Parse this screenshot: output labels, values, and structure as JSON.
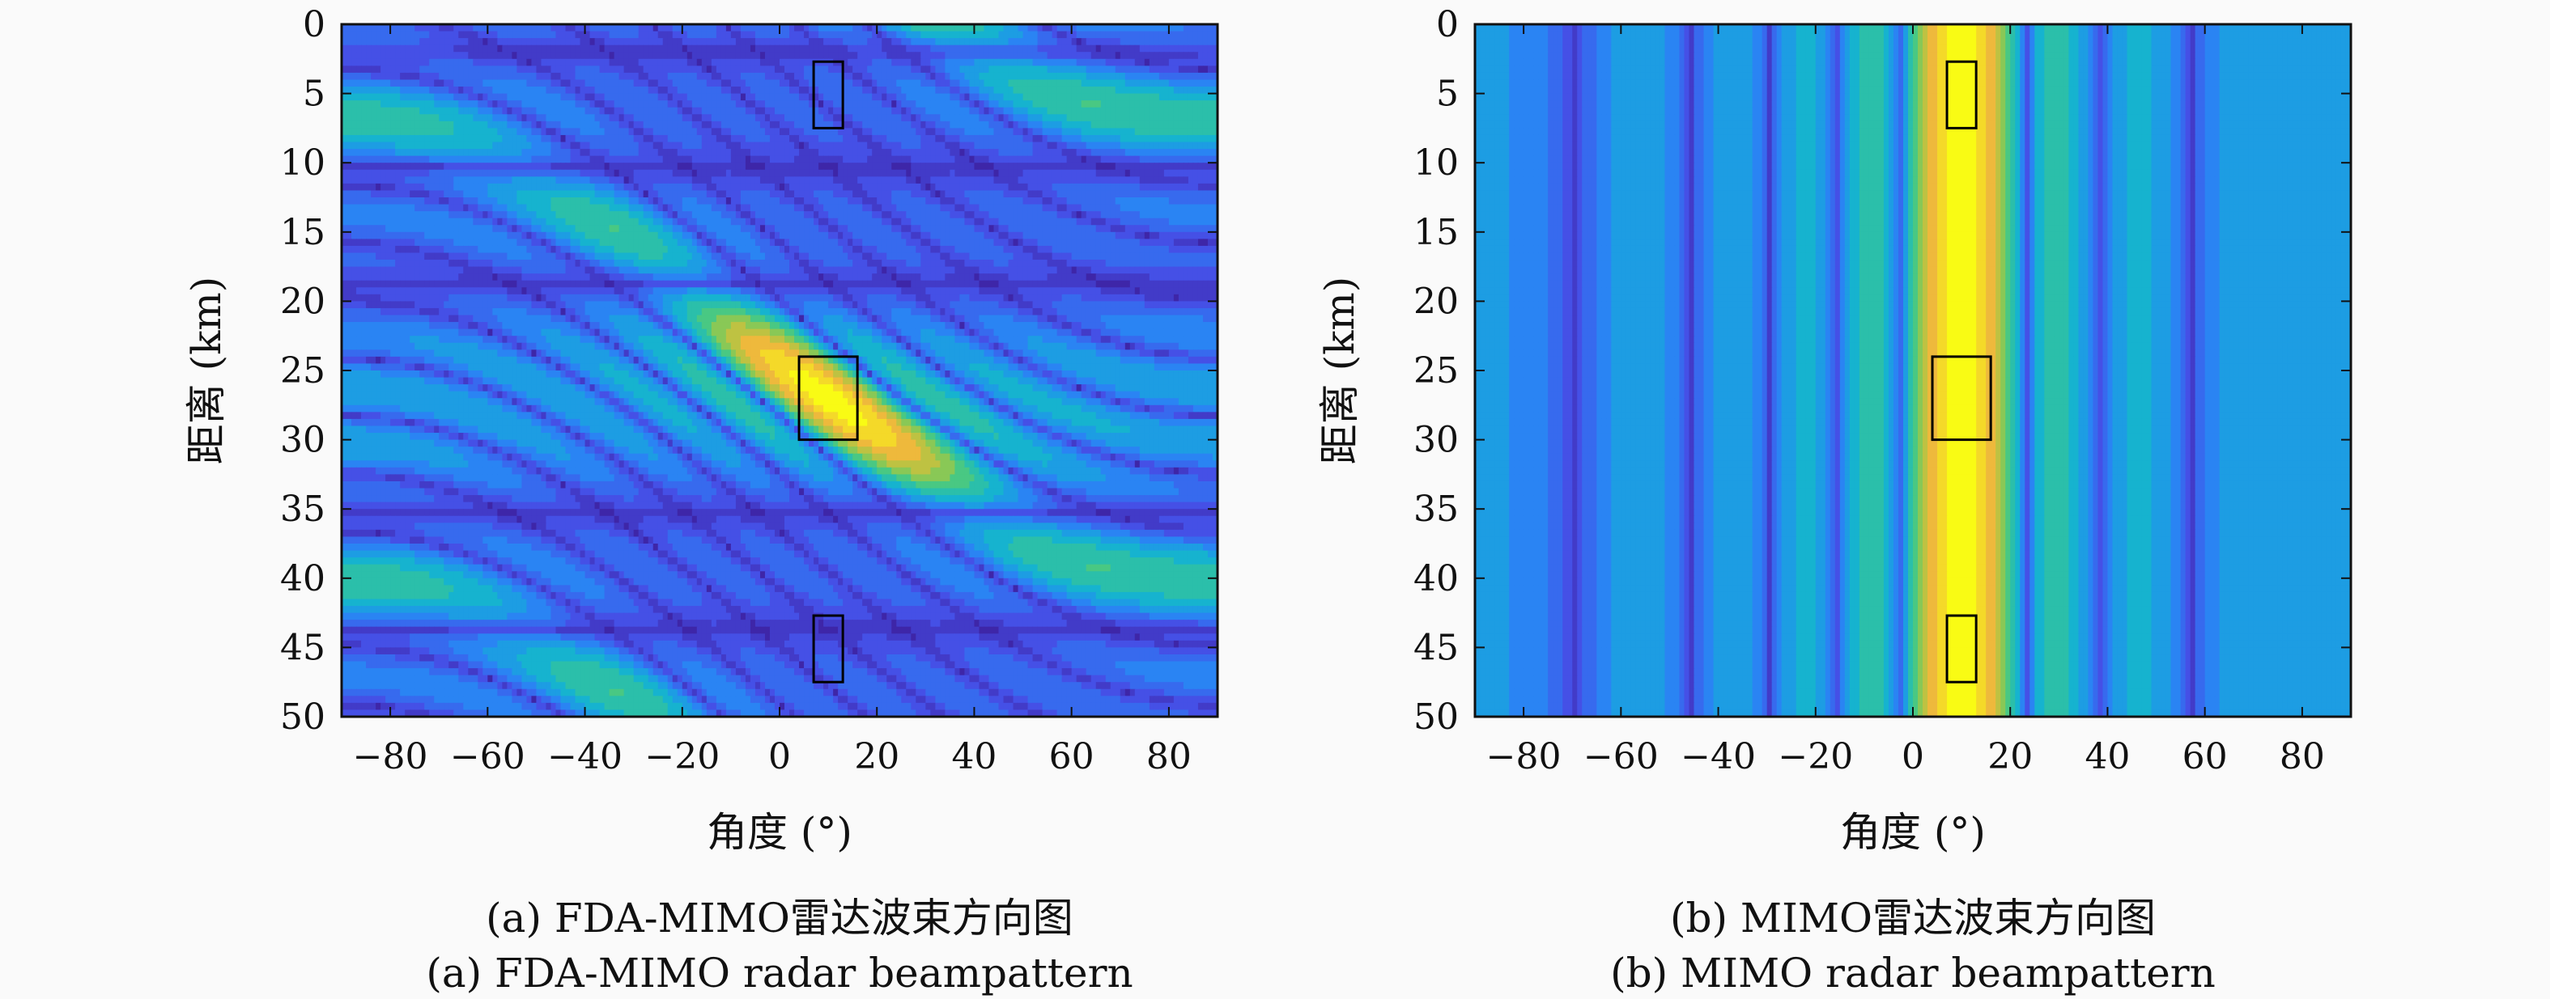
{
  "chart_data": [
    {
      "type": "heatmap",
      "panel": "a",
      "xlabel": "角度 (°)",
      "ylabel": "距离 (km)",
      "xlim": [
        -90,
        90
      ],
      "ylim": [
        50,
        0
      ],
      "xticks": [
        -80,
        -60,
        -40,
        -20,
        0,
        20,
        40,
        60,
        80
      ],
      "yticks": [
        0,
        5,
        10,
        15,
        20,
        25,
        30,
        35,
        40,
        45,
        50
      ],
      "xticklabels": [
        "−80",
        "−60",
        "−40",
        "−20",
        "0",
        "20",
        "40",
        "60",
        "80"
      ],
      "yticklabels": [
        "0",
        "5",
        "10",
        "15",
        "20",
        "25",
        "30",
        "35",
        "40",
        "45",
        "50"
      ],
      "colormap": "parula",
      "peak": {
        "angle": 10,
        "range": 27
      },
      "target_boxes": [
        {
          "angle": [
            7,
            13
          ],
          "range": [
            2.7,
            7.5
          ]
        },
        {
          "angle": [
            4,
            16
          ],
          "range": [
            24,
            30
          ]
        },
        {
          "angle": [
            7,
            13
          ],
          "range": [
            42.7,
            47.5
          ]
        }
      ],
      "caption_cn": "(a) FDA-MIMO雷达波束方向图",
      "caption_en": "(a) FDA-MIMO radar beampattern"
    },
    {
      "type": "heatmap",
      "panel": "b",
      "xlabel": "角度 (°)",
      "ylabel": "距离 (km)",
      "xlim": [
        -90,
        90
      ],
      "ylim": [
        50,
        0
      ],
      "xticks": [
        -80,
        -60,
        -40,
        -20,
        0,
        20,
        40,
        60,
        80
      ],
      "yticks": [
        0,
        5,
        10,
        15,
        20,
        25,
        30,
        35,
        40,
        45,
        50
      ],
      "xticklabels": [
        "−80",
        "−60",
        "−40",
        "−20",
        "0",
        "20",
        "40",
        "60",
        "80"
      ],
      "yticklabels": [
        "0",
        "5",
        "10",
        "15",
        "20",
        "25",
        "30",
        "35",
        "40",
        "45",
        "50"
      ],
      "colormap": "parula",
      "peak": {
        "angle": 10
      },
      "target_boxes": [
        {
          "angle": [
            7,
            13
          ],
          "range": [
            2.7,
            7.5
          ]
        },
        {
          "angle": [
            4,
            16
          ],
          "range": [
            24,
            30
          ]
        },
        {
          "angle": [
            7,
            13
          ],
          "range": [
            42.7,
            47.5
          ]
        }
      ],
      "caption_cn": "(b) MIMO雷达波束方向图",
      "caption_en": "(b) MIMO radar beampattern"
    }
  ]
}
